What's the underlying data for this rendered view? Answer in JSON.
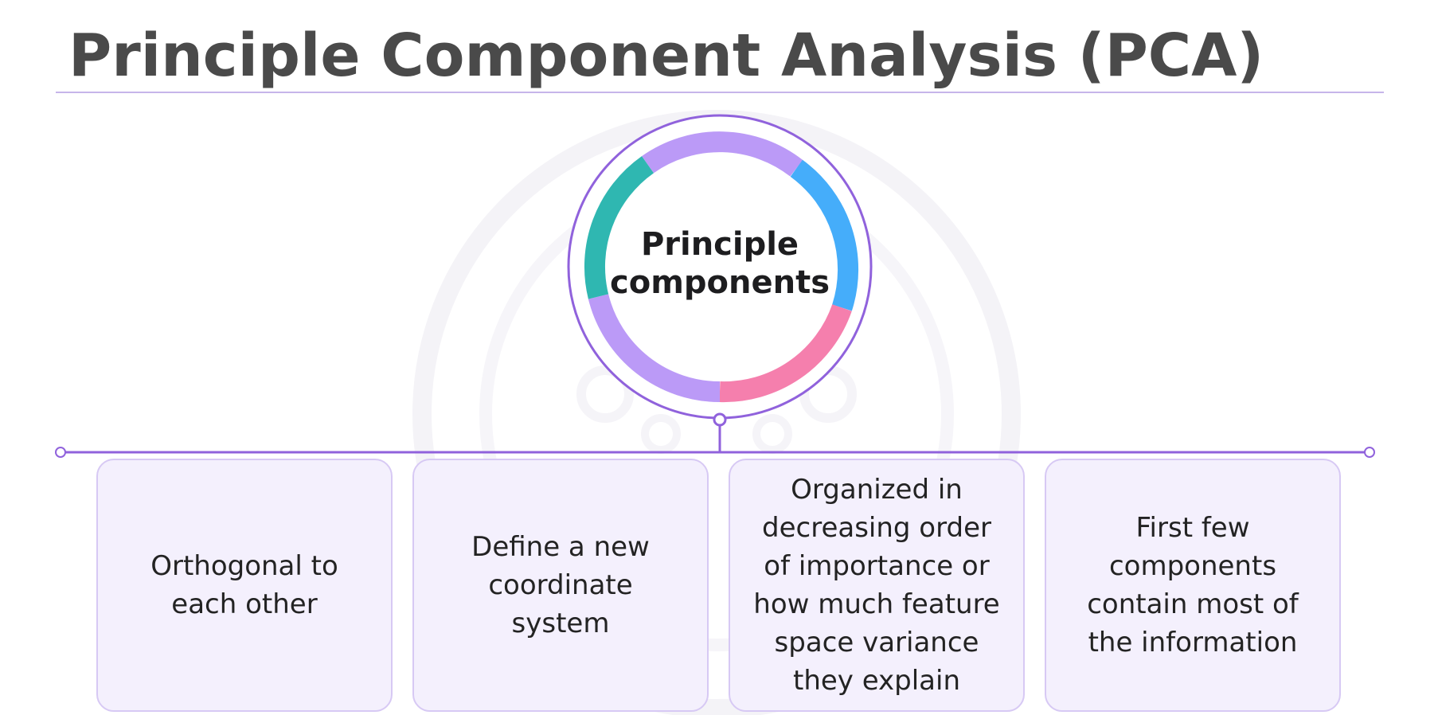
{
  "slide": {
    "title": "Principle Component Analysis (PCA)"
  },
  "hub": {
    "label_line1": "Principle",
    "label_line2": "components"
  },
  "cards": [
    {
      "text_lines": [
        "Orthogonal to",
        "each other"
      ]
    },
    {
      "text_lines": [
        "Define a new",
        "coordinate",
        "system"
      ]
    },
    {
      "text_lines": [
        "Organized in",
        "decreasing order",
        "of importance or",
        "how much feature",
        "space variance",
        "they explain"
      ]
    },
    {
      "text_lines": [
        "First few",
        "components",
        "contain most of",
        "the information"
      ]
    }
  ],
  "colors": {
    "title": "#4a4a4a",
    "accent_purple": "#8e5fdc",
    "ring_lavender": "#bb9af7",
    "ring_blue": "#45adfa",
    "ring_pink": "#f57fad",
    "ring_teal": "#2fb7b1",
    "card_fill": "#f4f0fd",
    "card_border": "#d7c9f4"
  }
}
